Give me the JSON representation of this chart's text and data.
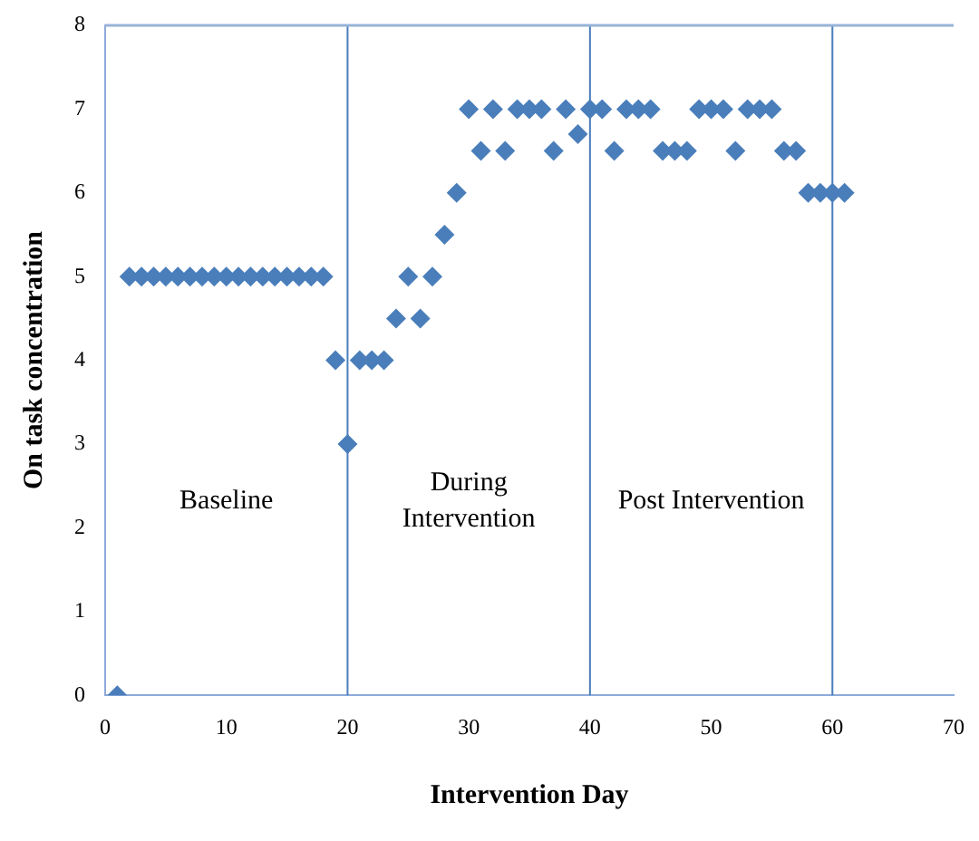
{
  "chart_data": {
    "type": "scatter",
    "xlabel": "Intervention Day",
    "ylabel": "On task concentration",
    "x": [
      1,
      2,
      3,
      4,
      5,
      6,
      7,
      8,
      9,
      10,
      11,
      12,
      13,
      14,
      15,
      16,
      17,
      18,
      19,
      20,
      21,
      22,
      23,
      24,
      25,
      26,
      27,
      28,
      29,
      30,
      31,
      32,
      33,
      34,
      35,
      36,
      37,
      38,
      39,
      40,
      41,
      42,
      43,
      44,
      45,
      46,
      47,
      48,
      49,
      50,
      51,
      52,
      53,
      54,
      55,
      56,
      57,
      58,
      59,
      60,
      61
    ],
    "series": [
      {
        "color": "#4a7ebb",
        "values": [
          0,
          5,
          5,
          5,
          5,
          5,
          5,
          5,
          5,
          5,
          5,
          5,
          5,
          5,
          5,
          5,
          5,
          5,
          4,
          3,
          4,
          4,
          4,
          4.5,
          5,
          4.5,
          5,
          5.5,
          6,
          7,
          6.5,
          7,
          6.5,
          7,
          7,
          7,
          6.5,
          7,
          6.7,
          7,
          7,
          6.5,
          7,
          7,
          7,
          6.5,
          6.5,
          6.5,
          7,
          7,
          7,
          6.5,
          7,
          7,
          7,
          6.5,
          6.5,
          6,
          6,
          6,
          6
        ]
      }
    ],
    "marker": "diamond",
    "xlim": [
      0,
      70
    ],
    "xticks": [
      0,
      10,
      20,
      30,
      40,
      50,
      60,
      70
    ],
    "ylim": [
      0,
      8
    ],
    "yticks": [
      0,
      1,
      2,
      3,
      4,
      5,
      6,
      7,
      8
    ],
    "grid": false,
    "legend": false,
    "ref_lines": [
      {
        "axis": "x",
        "value": 20,
        "color": "#4a7ebb"
      },
      {
        "axis": "x",
        "value": 40,
        "color": "#4a7ebb"
      },
      {
        "axis": "x",
        "value": 60,
        "color": "#4a7ebb"
      }
    ],
    "annotations": [
      "Baseline",
      "During Intervention",
      "Post Intervention"
    ]
  }
}
